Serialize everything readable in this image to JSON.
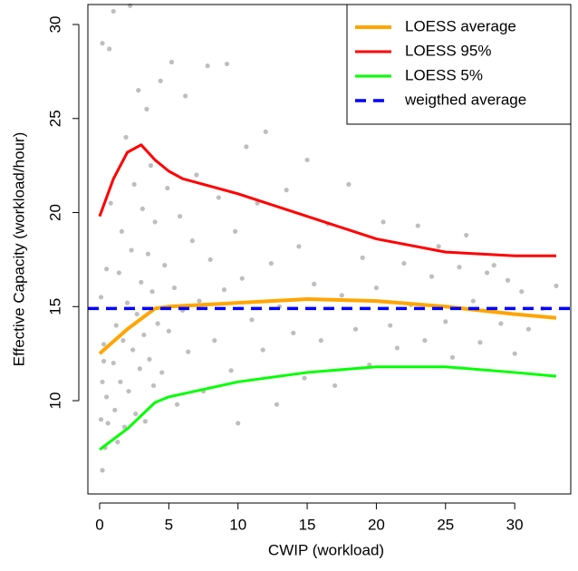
{
  "chart_data": {
    "type": "scatter",
    "xlabel": "CWIP (workload)",
    "ylabel": "Effective Capacity (workload/hour)",
    "xlim": [
      -0.85,
      34.05
    ],
    "ylim": [
      5.04,
      31.06
    ],
    "xticks": [
      0,
      5,
      10,
      15,
      20,
      25,
      30
    ],
    "yticks": [
      10,
      15,
      20,
      25,
      30
    ],
    "points": {
      "color": "#bebebe",
      "x": [
        0.1,
        0.2,
        0.3,
        0.1,
        0.4,
        0.5,
        0.2,
        0.6,
        0.3,
        0.5,
        0.2,
        0.7,
        0.8,
        1,
        1.1,
        1.2,
        1.3,
        1.4,
        1.5,
        1.0,
        1.6,
        1.7,
        1.8,
        1.9,
        2,
        2.1,
        2.2,
        2.3,
        2.4,
        2.5,
        2.6,
        2.7,
        2.8,
        2.9,
        3,
        3.1,
        3.2,
        3.3,
        3.4,
        3.5,
        3.6,
        3.7,
        3.8,
        3.9,
        4,
        4.2,
        4.4,
        4.5,
        4.7,
        4.9,
        5,
        5.2,
        5.4,
        5.6,
        5.8,
        6,
        6.2,
        6.4,
        6.7,
        7,
        7.2,
        7.5,
        7.8,
        8,
        8.3,
        8.6,
        9,
        9.2,
        9.5,
        9.8,
        10,
        10.3,
        10.6,
        11,
        11.4,
        11.8,
        12,
        12.4,
        12.8,
        13,
        13.5,
        14,
        14.4,
        14.8,
        15,
        15.5,
        16,
        16.5,
        17,
        17.5,
        18,
        18.5,
        19,
        19.5,
        20,
        20.5,
        21,
        21.5,
        22,
        22.5,
        23,
        23.5,
        24,
        24.5,
        25,
        25.5,
        26,
        26.5,
        27,
        27.5,
        28,
        28.5,
        29,
        29.5,
        30,
        30.5,
        31,
        32,
        33
      ],
      "y": [
        9,
        11,
        13,
        15.5,
        7.5,
        10.2,
        6.3,
        8.8,
        12.1,
        17,
        29,
        28.7,
        20.5,
        12,
        9.5,
        14,
        7.8,
        16.8,
        11,
        30.7,
        19,
        13.2,
        8.6,
        24,
        15.2,
        10.5,
        31,
        18,
        12.7,
        21.5,
        9.3,
        14.6,
        26.5,
        11.7,
        16.3,
        20.2,
        13.5,
        8.9,
        25.5,
        17.8,
        12.2,
        22.5,
        15.8,
        10.8,
        19.5,
        14.1,
        27,
        11.5,
        17.2,
        21.3,
        13.7,
        28,
        16,
        9.8,
        19.8,
        14.8,
        26.2,
        12.6,
        18.5,
        22,
        15.3,
        10.5,
        27.8,
        17.5,
        13.2,
        20.8,
        15.9,
        27.9,
        11.6,
        19,
        8.8,
        16.5,
        23.5,
        14.3,
        20.5,
        12.7,
        24.3,
        17.3,
        9.8,
        15,
        21.2,
        13.6,
        18.2,
        11.2,
        22.8,
        16.2,
        13.2,
        19.4,
        10.8,
        15.6,
        21.5,
        13.8,
        17.6,
        11.9,
        16,
        19.5,
        14,
        12.8,
        17.3,
        15.1,
        19.3,
        13.2,
        16.6,
        18.2,
        14.2,
        12.3,
        17.1,
        18.8,
        15.3,
        13.1,
        16.8,
        17.2,
        14.1,
        16.4,
        12.5,
        15.8,
        13.8,
        14.9,
        16.1
      ]
    },
    "series": [
      {
        "name": "LOESS average",
        "color": "#ffa500",
        "x": [
          0,
          2,
          4,
          5,
          10,
          15,
          20,
          25,
          30,
          33
        ],
        "values": [
          12.5,
          13.8,
          14.9,
          15.0,
          15.2,
          15.4,
          15.3,
          15.0,
          14.6,
          14.4
        ]
      },
      {
        "name": "LOESS 95%",
        "color": "#ff0000",
        "x": [
          0,
          1,
          2,
          3,
          4,
          5,
          6,
          10,
          15,
          20,
          25,
          30,
          33
        ],
        "values": [
          19.8,
          21.8,
          23.2,
          23.6,
          22.8,
          22.2,
          21.8,
          21.0,
          19.8,
          18.6,
          17.9,
          17.7,
          17.7
        ]
      },
      {
        "name": "LOESS 5%",
        "color": "#00ff00",
        "x": [
          0,
          2,
          4,
          5,
          10,
          15,
          20,
          25,
          30,
          33
        ],
        "values": [
          7.4,
          8.5,
          9.9,
          10.2,
          11.0,
          11.5,
          11.8,
          11.8,
          11.5,
          11.3
        ]
      }
    ],
    "reference_line": {
      "name": "weigthed average",
      "color": "#0000ff",
      "value": 14.9
    },
    "legend": "top-right"
  }
}
